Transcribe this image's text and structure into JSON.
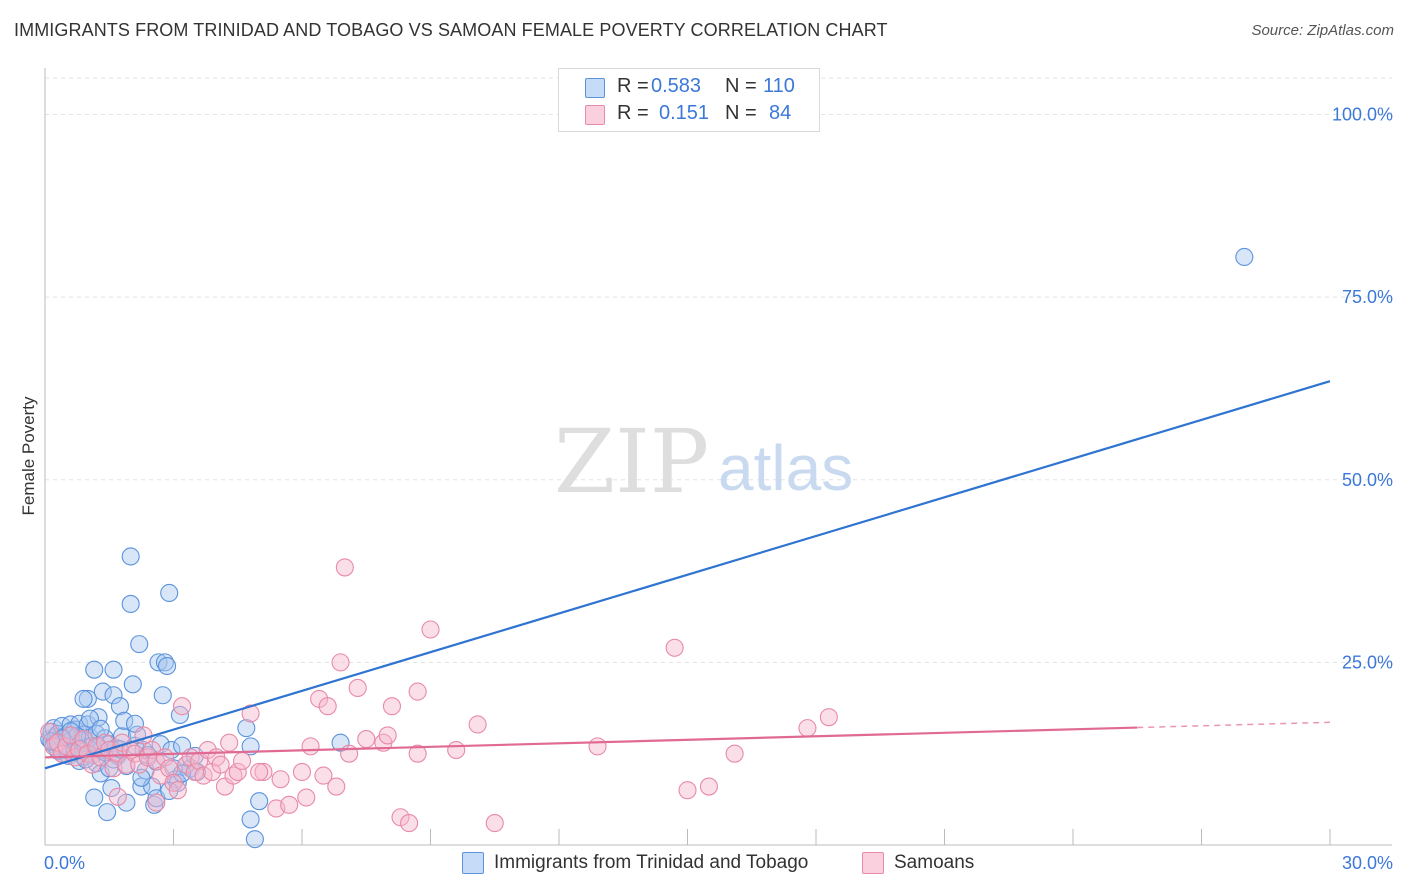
{
  "title": "IMMIGRANTS FROM TRINIDAD AND TOBAGO VS SAMOAN FEMALE POVERTY CORRELATION CHART",
  "source": "Source: ZipAtlas.com",
  "watermark": {
    "zip": "ZIP",
    "atlas": "atlas"
  },
  "legend_top": [
    {
      "r_label": "R =",
      "r_value": "0.583",
      "n_label": "N =",
      "n_value": "110"
    },
    {
      "r_label": "R =",
      "r_value": "0.151",
      "n_label": "N =",
      "n_value": "84"
    }
  ],
  "colors": {
    "blue_fill": "#a9c8f0",
    "blue_stroke": "#5b93dc",
    "blue_line": "#2f74d0",
    "pink_fill": "#f6b9cc",
    "pink_stroke": "#e88aa8",
    "pink_line": "#e06a93",
    "tick_label": "#3b78d8",
    "grid": "#e3e3e3"
  },
  "chart_data": {
    "type": "scatter",
    "title": "IMMIGRANTS FROM TRINIDAD AND TOBAGO VS SAMOAN FEMALE POVERTY CORRELATION CHART",
    "xlabel": "",
    "ylabel": "Female Poverty",
    "xlim": [
      0,
      30
    ],
    "ylim": [
      0,
      105
    ],
    "x_tick_labels": [
      "0.0%",
      "30.0%"
    ],
    "y_ticks": [
      25,
      50,
      75,
      100
    ],
    "y_tick_labels": [
      "25.0%",
      "50.0%",
      "75.0%",
      "100.0%"
    ],
    "grid": true,
    "legend_position": "bottom",
    "series": [
      {
        "name": "Immigrants from Trinidad and Tobago",
        "color": "#5b93dc",
        "trend": {
          "x": [
            0,
            30
          ],
          "y": [
            10.5,
            63.5
          ],
          "dashed_from": null
        },
        "points": [
          [
            0.1,
            14.5
          ],
          [
            0.15,
            15.5
          ],
          [
            0.2,
            13.8
          ],
          [
            0.2,
            16
          ],
          [
            0.25,
            14.8
          ],
          [
            0.3,
            13
          ],
          [
            0.3,
            15.2
          ],
          [
            0.35,
            14.2
          ],
          [
            0.4,
            12.5
          ],
          [
            0.4,
            16.3
          ],
          [
            0.45,
            13.6
          ],
          [
            0.5,
            15
          ],
          [
            0.5,
            14
          ],
          [
            0.55,
            12.2
          ],
          [
            0.6,
            16.5
          ],
          [
            0.6,
            13.2
          ],
          [
            0.65,
            14.6
          ],
          [
            0.7,
            12.8
          ],
          [
            0.7,
            15.8
          ],
          [
            0.75,
            13.9
          ],
          [
            0.8,
            16.6
          ],
          [
            0.8,
            11.5
          ],
          [
            0.85,
            14.2
          ],
          [
            0.9,
            12.1
          ],
          [
            0.9,
            15.1
          ],
          [
            0.95,
            13.4
          ],
          [
            1.0,
            20
          ],
          [
            1.0,
            16.5
          ],
          [
            1.05,
            14.7
          ],
          [
            1.1,
            12.3
          ],
          [
            1.1,
            13.6
          ],
          [
            1.15,
            24
          ],
          [
            1.2,
            11.2
          ],
          [
            1.2,
            15.2
          ],
          [
            1.25,
            17.5
          ],
          [
            1.3,
            13
          ],
          [
            1.3,
            9.8
          ],
          [
            1.35,
            21
          ],
          [
            1.4,
            12.7
          ],
          [
            1.4,
            14.6
          ],
          [
            1.5,
            13.8
          ],
          [
            1.5,
            10.5
          ],
          [
            1.55,
            7.8
          ],
          [
            1.6,
            24
          ],
          [
            1.6,
            20.5
          ],
          [
            1.65,
            13.3
          ],
          [
            1.7,
            12.2
          ],
          [
            1.75,
            19
          ],
          [
            1.8,
            14.9
          ],
          [
            1.85,
            17
          ],
          [
            1.9,
            10.8
          ],
          [
            2.0,
            39.5
          ],
          [
            2.0,
            33
          ],
          [
            2.05,
            22
          ],
          [
            2.1,
            13.6
          ],
          [
            2.15,
            15.1
          ],
          [
            2.2,
            27.5
          ],
          [
            2.25,
            8
          ],
          [
            2.3,
            13
          ],
          [
            2.35,
            10.2
          ],
          [
            2.4,
            12.3
          ],
          [
            2.5,
            8
          ],
          [
            2.55,
            5.5
          ],
          [
            2.6,
            11.4
          ],
          [
            2.65,
            25
          ],
          [
            2.7,
            13.8
          ],
          [
            2.75,
            20.5
          ],
          [
            2.8,
            25
          ],
          [
            2.85,
            24.5
          ],
          [
            2.9,
            34.5
          ],
          [
            2.95,
            13
          ],
          [
            3.0,
            10.5
          ],
          [
            3.05,
            9
          ],
          [
            3.1,
            8.5
          ],
          [
            3.15,
            17.8
          ],
          [
            3.2,
            13.6
          ],
          [
            3.3,
            11
          ],
          [
            3.4,
            10.5
          ],
          [
            3.5,
            12.2
          ],
          [
            3.55,
            10
          ],
          [
            4.7,
            16
          ],
          [
            4.8,
            13.5
          ],
          [
            4.9,
            0.8
          ],
          [
            5.0,
            6
          ],
          [
            6.9,
            14
          ],
          [
            0.5,
            13
          ],
          [
            0.9,
            20
          ],
          [
            1.45,
            4.5
          ],
          [
            1.9,
            5.8
          ],
          [
            0.3,
            12.9
          ],
          [
            0.75,
            14.9
          ],
          [
            1.05,
            17.3
          ],
          [
            1.3,
            15.9
          ],
          [
            1.6,
            11.7
          ],
          [
            2.1,
            16.6
          ],
          [
            0.25,
            14
          ],
          [
            0.6,
            15.6
          ],
          [
            0.95,
            11.7
          ],
          [
            1.25,
            13.4
          ],
          [
            1.75,
            13.1
          ],
          [
            2.25,
            9.2
          ],
          [
            2.6,
            6.4
          ],
          [
            2.9,
            7.4
          ],
          [
            3.2,
            9.8
          ],
          [
            0.4,
            14.6
          ],
          [
            0.8,
            13.2
          ],
          [
            1.15,
            6.5
          ],
          [
            4.8,
            3.5
          ],
          [
            28,
            80.5
          ],
          [
            0.15,
            14.2
          ]
        ]
      },
      {
        "name": "Samoans",
        "color": "#e88aa8",
        "trend": {
          "x": [
            0,
            30
          ],
          "y": [
            12,
            16.8
          ],
          "dashed_from": 25.5
        },
        "points": [
          [
            0.1,
            15.5
          ],
          [
            0.2,
            13.5
          ],
          [
            0.3,
            14
          ],
          [
            0.4,
            12.5
          ],
          [
            0.5,
            13.5
          ],
          [
            0.6,
            15
          ],
          [
            0.7,
            12
          ],
          [
            0.8,
            13
          ],
          [
            0.9,
            14.5
          ],
          [
            1.0,
            12.5
          ],
          [
            1.1,
            11
          ],
          [
            1.2,
            13.5
          ],
          [
            1.3,
            12
          ],
          [
            1.4,
            14
          ],
          [
            1.5,
            13
          ],
          [
            1.6,
            10.5
          ],
          [
            1.7,
            12.5
          ],
          [
            1.8,
            14
          ],
          [
            1.9,
            11
          ],
          [
            2.0,
            13
          ],
          [
            2.1,
            12.5
          ],
          [
            2.2,
            11
          ],
          [
            2.3,
            15
          ],
          [
            2.4,
            12
          ],
          [
            2.5,
            13
          ],
          [
            2.6,
            11.5
          ],
          [
            2.7,
            9.5
          ],
          [
            2.8,
            12
          ],
          [
            2.9,
            10.5
          ],
          [
            3.0,
            8.5
          ],
          [
            3.1,
            7.5
          ],
          [
            3.2,
            19
          ],
          [
            3.3,
            11
          ],
          [
            3.4,
            12
          ],
          [
            3.5,
            10
          ],
          [
            3.6,
            11.5
          ],
          [
            3.7,
            9.5
          ],
          [
            3.8,
            13
          ],
          [
            3.9,
            10
          ],
          [
            4.0,
            12
          ],
          [
            4.1,
            11
          ],
          [
            4.2,
            8
          ],
          [
            4.3,
            14
          ],
          [
            4.4,
            9.5
          ],
          [
            4.5,
            10
          ],
          [
            4.6,
            11.5
          ],
          [
            4.8,
            18
          ],
          [
            5.1,
            10
          ],
          [
            5.4,
            5
          ],
          [
            5.5,
            9
          ],
          [
            5.7,
            5.5
          ],
          [
            6.0,
            10
          ],
          [
            6.2,
            13.5
          ],
          [
            6.4,
            20
          ],
          [
            6.5,
            9.5
          ],
          [
            6.6,
            19
          ],
          [
            6.8,
            8
          ],
          [
            7.1,
            12.5
          ],
          [
            7.3,
            21.5
          ],
          [
            7.5,
            14.5
          ],
          [
            7.9,
            14
          ],
          [
            8.0,
            15
          ],
          [
            8.1,
            19
          ],
          [
            8.3,
            3.8
          ],
          [
            8.5,
            3
          ],
          [
            8.7,
            12.5
          ],
          [
            9.0,
            29.5
          ],
          [
            9.6,
            13
          ],
          [
            10.1,
            16.5
          ],
          [
            10.5,
            3
          ],
          [
            12.9,
            13.5
          ],
          [
            14.7,
            27
          ],
          [
            15.0,
            7.5
          ],
          [
            15.5,
            8
          ],
          [
            16.1,
            12.5
          ],
          [
            17.8,
            16
          ],
          [
            18.3,
            17.5
          ],
          [
            5.0,
            10
          ],
          [
            6.1,
            6.5
          ],
          [
            2.6,
            5.8
          ],
          [
            1.7,
            6.6
          ],
          [
            7.0,
            38
          ],
          [
            6.9,
            25
          ],
          [
            8.7,
            21
          ]
        ]
      }
    ]
  }
}
